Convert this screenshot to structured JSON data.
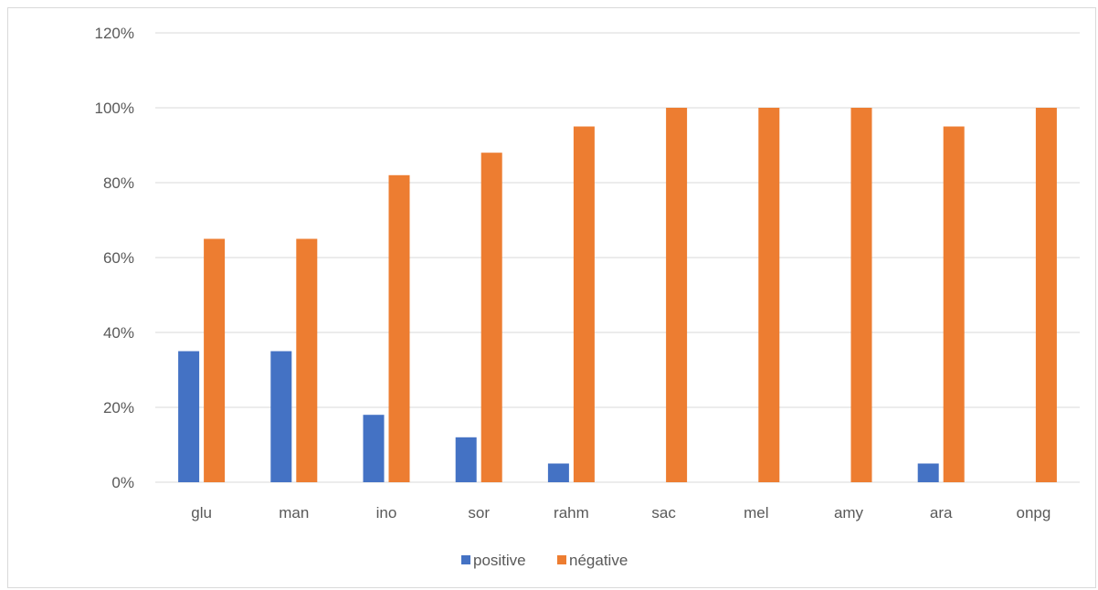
{
  "chart_data": {
    "type": "bar",
    "categories": [
      "glu",
      "man",
      "ino",
      "sor",
      "rahm",
      "sac",
      "mel",
      "amy",
      "ara",
      "onpg"
    ],
    "series": [
      {
        "name": "positive",
        "color": "#4472c4",
        "values": [
          35,
          35,
          18,
          12,
          5,
          0,
          0,
          0,
          5,
          0
        ]
      },
      {
        "name": "négative",
        "color": "#ed7d31",
        "values": [
          65,
          65,
          82,
          88,
          95,
          100,
          100,
          100,
          95,
          100
        ]
      }
    ],
    "ylim": [
      0,
      120
    ],
    "yticks": [
      0,
      20,
      40,
      60,
      80,
      100,
      120
    ],
    "ytick_labels": [
      "0%",
      "20%",
      "40%",
      "60%",
      "80%",
      "100%",
      "120%"
    ],
    "grid": true,
    "legend": "bottom",
    "gridline_color": "#d9d9d9",
    "axis_color": "#d9d9d9"
  }
}
